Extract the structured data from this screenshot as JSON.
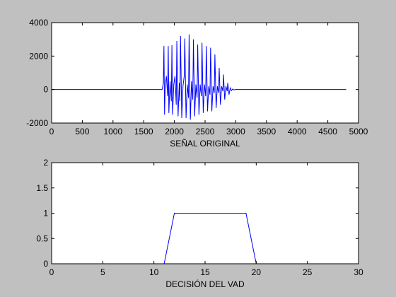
{
  "chart_data": [
    {
      "type": "line",
      "xlabel": "SEÑAL ORIGINAL",
      "ylabel": "",
      "xlim": [
        0,
        5000
      ],
      "ylim": [
        -2000,
        4000
      ],
      "xticks": [
        0,
        500,
        1000,
        1500,
        2000,
        2500,
        3000,
        3500,
        4000,
        4500,
        5000
      ],
      "yticks": [
        -2000,
        0,
        2000,
        4000
      ],
      "grid": false,
      "series": [
        {
          "color": "#0000ff",
          "x": [
            0,
            1800,
            1820,
            1830,
            1840,
            1850,
            1870,
            1890,
            1900,
            1910,
            1930,
            1950,
            1960,
            1970,
            1990,
            2010,
            2030,
            2040,
            2060,
            2080,
            2090,
            2100,
            2120,
            2140,
            2160,
            2170,
            2190,
            2210,
            2230,
            2240,
            2260,
            2280,
            2300,
            2310,
            2330,
            2350,
            2370,
            2380,
            2400,
            2420,
            2440,
            2450,
            2470,
            2490,
            2510,
            2520,
            2540,
            2560,
            2580,
            2590,
            2610,
            2630,
            2650,
            2660,
            2680,
            2700,
            2720,
            2730,
            2750,
            2770,
            2790,
            2800,
            2820,
            2840,
            2860,
            2870,
            2890,
            2910,
            2930,
            2950,
            2970,
            3000,
            4800
          ],
          "y": [
            0,
            0,
            400,
            2600,
            -1500,
            200,
            800,
            -400,
            2600,
            -1400,
            500,
            -700,
            2650,
            -1500,
            300,
            800,
            -900,
            2900,
            -1600,
            400,
            -700,
            3200,
            -1700,
            200,
            800,
            3050,
            -1700,
            300,
            -500,
            3300,
            -1800,
            500,
            -600,
            3000,
            -1600,
            300,
            -500,
            2700,
            -1500,
            300,
            -400,
            2800,
            -1400,
            300,
            -400,
            2600,
            -1300,
            200,
            -300,
            2500,
            -1300,
            200,
            -200,
            2100,
            -1100,
            200,
            -200,
            1300,
            -900,
            200,
            -100,
            900,
            -600,
            200,
            -100,
            400,
            -300,
            100,
            -60,
            30,
            -20,
            0,
            0
          ]
        }
      ]
    },
    {
      "type": "line",
      "xlabel": "DECISIÓN DEL VAD",
      "ylabel": "",
      "xlim": [
        0,
        30
      ],
      "ylim": [
        0,
        2
      ],
      "xticks": [
        0,
        5,
        10,
        15,
        20,
        25,
        30
      ],
      "yticks": [
        0,
        0.5,
        1,
        1.5,
        2
      ],
      "grid": false,
      "series": [
        {
          "color": "#0000ff",
          "x": [
            1,
            11,
            12,
            19,
            20,
            30
          ],
          "y": [
            0,
            0,
            1,
            1,
            0,
            0
          ]
        }
      ]
    }
  ]
}
